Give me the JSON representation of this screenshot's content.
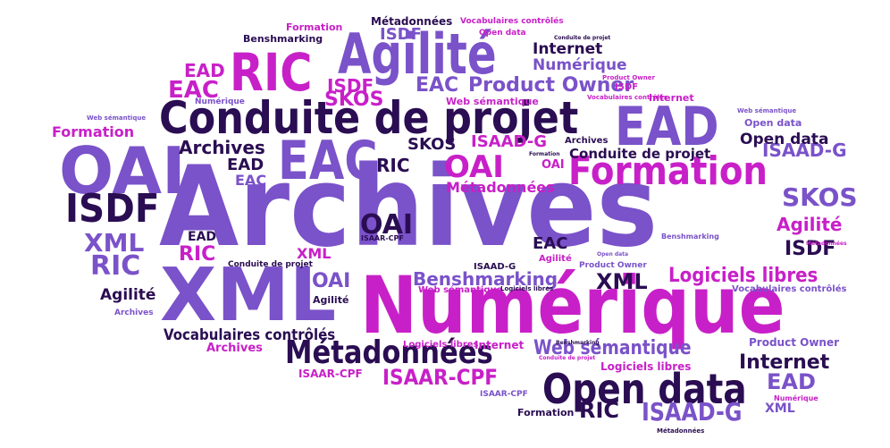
{
  "words": {
    "archives": "Archives",
    "numerique": "Numérique",
    "xml": "XML",
    "oai": "OAI",
    "conduite": "Conduite de projet",
    "agilite": "Agilité",
    "ric": "RIC",
    "ead": "EAD",
    "eac": "EAC",
    "formation": "Formation",
    "isdf": "ISDF",
    "opendata": "Open data",
    "metadonnees": "Métadonnées",
    "logiciels": "Logiciels libres",
    "benshmarking": "Benshmarking",
    "websem": "Web sémantique",
    "isaadg": "ISAAD-G",
    "isaarcpf": "ISAAR-CPF",
    "skos": "SKOS",
    "internet": "Internet",
    "vocab": "Vocabulaires contrôlés",
    "productowner": "Product Owner"
  },
  "colors": {
    "dark": "#2a0d52",
    "purple": "#7a52c9",
    "pink": "#c820c8",
    "mid": "#9a5fe0"
  }
}
